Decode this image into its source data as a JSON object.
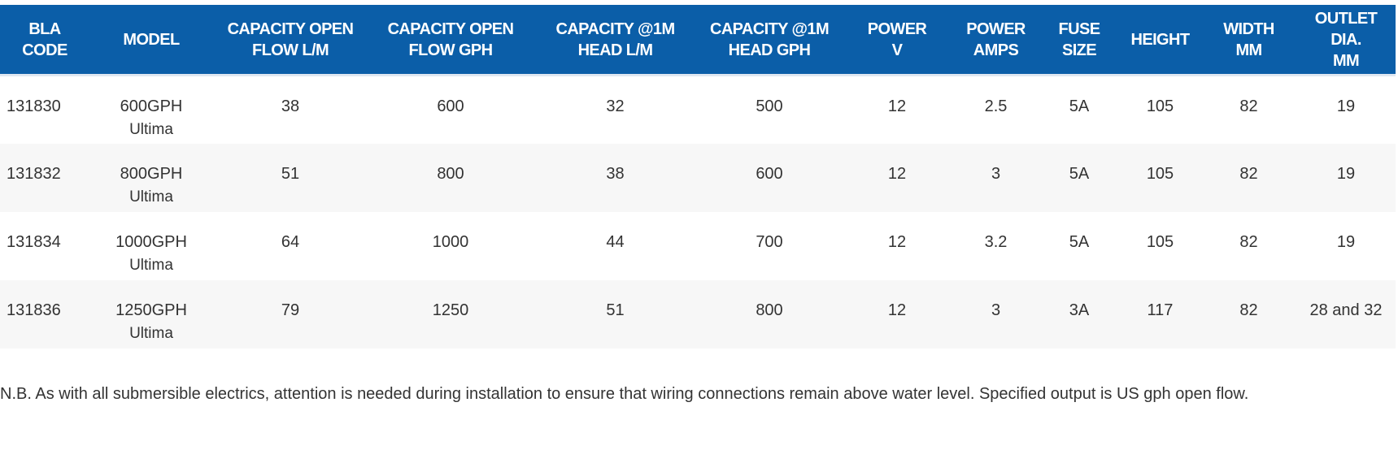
{
  "table": {
    "header": [
      [
        "BLA",
        "CODE"
      ],
      [
        "MODEL"
      ],
      [
        "CAPACITY OPEN",
        "FLOW L/M"
      ],
      [
        "CAPACITY OPEN",
        "FLOW GPH"
      ],
      [
        "CAPACITY @1M",
        "HEAD L/M"
      ],
      [
        "CAPACITY @1M",
        "HEAD GPH"
      ],
      [
        "POWER",
        "V"
      ],
      [
        "POWER",
        "AMPS"
      ],
      [
        "FUSE",
        "SIZE"
      ],
      [
        "HEIGHT"
      ],
      [
        "WIDTH",
        "MM"
      ],
      [
        "OUTLET DIA.",
        "MM"
      ]
    ],
    "rows": [
      [
        "131830",
        [
          "600GPH",
          "Ultima"
        ],
        "38",
        "600",
        "32",
        "500",
        "12",
        "2.5",
        "5A",
        "105",
        "82",
        "19"
      ],
      [
        "131832",
        [
          "800GPH",
          "Ultima"
        ],
        "51",
        "800",
        "38",
        "600",
        "12",
        "3",
        "5A",
        "105",
        "82",
        "19"
      ],
      [
        "131834",
        [
          "1000GPH",
          "Ultima"
        ],
        "64",
        "1000",
        "44",
        "700",
        "12",
        "3.2",
        "5A",
        "105",
        "82",
        "19"
      ],
      [
        "131836",
        [
          "1250GPH",
          "Ultima"
        ],
        "79",
        "1250",
        "51",
        "800",
        "12",
        "3",
        "3A",
        "117",
        "82",
        "28 and 32"
      ]
    ]
  },
  "note": "N.B. As with all submersible electrics, attention is needed during installation to ensure that wiring connections remain above water level. Specified output is US gph open flow."
}
